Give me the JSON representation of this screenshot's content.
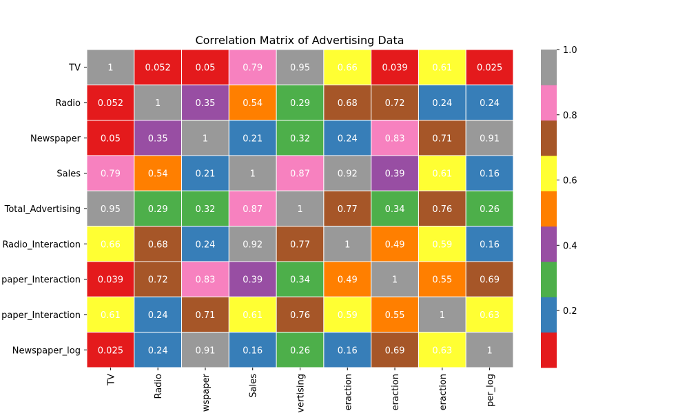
{
  "chart_data": {
    "type": "heatmap",
    "title": "Correlation Matrix of Advertising Data",
    "row_tick_labels": [
      "TV",
      "Radio",
      "Newspaper",
      "Sales",
      "Total_Advertising",
      "Radio_Interaction",
      "paper_Interaction",
      "paper_Interaction",
      "Newspaper_log"
    ],
    "col_tick_labels": [
      "TV",
      "Radio",
      "wspaper",
      "Sales",
      "vertising",
      "eraction",
      "eraction",
      "eraction",
      "per_log"
    ],
    "values": [
      [
        1,
        0.052,
        0.05,
        0.79,
        0.95,
        0.66,
        0.039,
        0.61,
        0.025
      ],
      [
        0.052,
        1,
        0.35,
        0.54,
        0.29,
        0.68,
        0.72,
        0.24,
        0.24
      ],
      [
        0.05,
        0.35,
        1,
        0.21,
        0.32,
        0.24,
        0.83,
        0.71,
        0.91
      ],
      [
        0.79,
        0.54,
        0.21,
        1,
        0.87,
        0.92,
        0.39,
        0.61,
        0.16
      ],
      [
        0.95,
        0.29,
        0.32,
        0.87,
        1,
        0.77,
        0.34,
        0.76,
        0.26
      ],
      [
        0.66,
        0.68,
        0.24,
        0.92,
        0.77,
        1,
        0.49,
        0.59,
        0.16
      ],
      [
        0.039,
        0.72,
        0.83,
        0.39,
        0.34,
        0.49,
        1,
        0.55,
        0.69
      ],
      [
        0.61,
        0.24,
        0.71,
        0.61,
        0.76,
        0.59,
        0.55,
        1,
        0.63
      ],
      [
        0.025,
        0.24,
        0.91,
        0.16,
        0.26,
        0.16,
        0.69,
        0.63,
        1
      ]
    ],
    "value_labels": [
      [
        "1",
        "0.052",
        "0.05",
        "0.79",
        "0.95",
        "0.66",
        "0.039",
        "0.61",
        "0.025"
      ],
      [
        "0.052",
        "1",
        "0.35",
        "0.54",
        "0.29",
        "0.68",
        "0.72",
        "0.24",
        "0.24"
      ],
      [
        "0.05",
        "0.35",
        "1",
        "0.21",
        "0.32",
        "0.24",
        "0.83",
        "0.71",
        "0.91"
      ],
      [
        "0.79",
        "0.54",
        "0.21",
        "1",
        "0.87",
        "0.92",
        "0.39",
        "0.61",
        "0.16"
      ],
      [
        "0.95",
        "0.29",
        "0.32",
        "0.87",
        "1",
        "0.77",
        "0.34",
        "0.76",
        "0.26"
      ],
      [
        "0.66",
        "0.68",
        "0.24",
        "0.92",
        "0.77",
        "1",
        "0.49",
        "0.59",
        "0.16"
      ],
      [
        "0.039",
        "0.72",
        "0.83",
        "0.39",
        "0.34",
        "0.49",
        "1",
        "0.55",
        "0.69"
      ],
      [
        "0.61",
        "0.24",
        "0.71",
        "0.61",
        "0.76",
        "0.59",
        "0.55",
        "1",
        "0.63"
      ],
      [
        "0.025",
        "0.24",
        "0.91",
        "0.16",
        "0.26",
        "0.16",
        "0.69",
        "0.63",
        "1"
      ]
    ],
    "colormap": {
      "name": "Set1",
      "vmin": 0.025,
      "vmax": 1,
      "colors": [
        "#e41a1c",
        "#377eb8",
        "#4daf4a",
        "#984ea3",
        "#ff7f00",
        "#ffff33",
        "#a65628",
        "#f781bf",
        "#999999"
      ]
    },
    "colorbar": {
      "ticks": [
        0.2,
        0.4,
        0.6,
        0.8,
        1.0
      ],
      "tick_labels": [
        "0.2",
        "0.4",
        "0.6",
        "0.8",
        "1.0"
      ]
    },
    "annotation_text_color": "#ffffff",
    "cell_border_color": "#ffffff"
  }
}
